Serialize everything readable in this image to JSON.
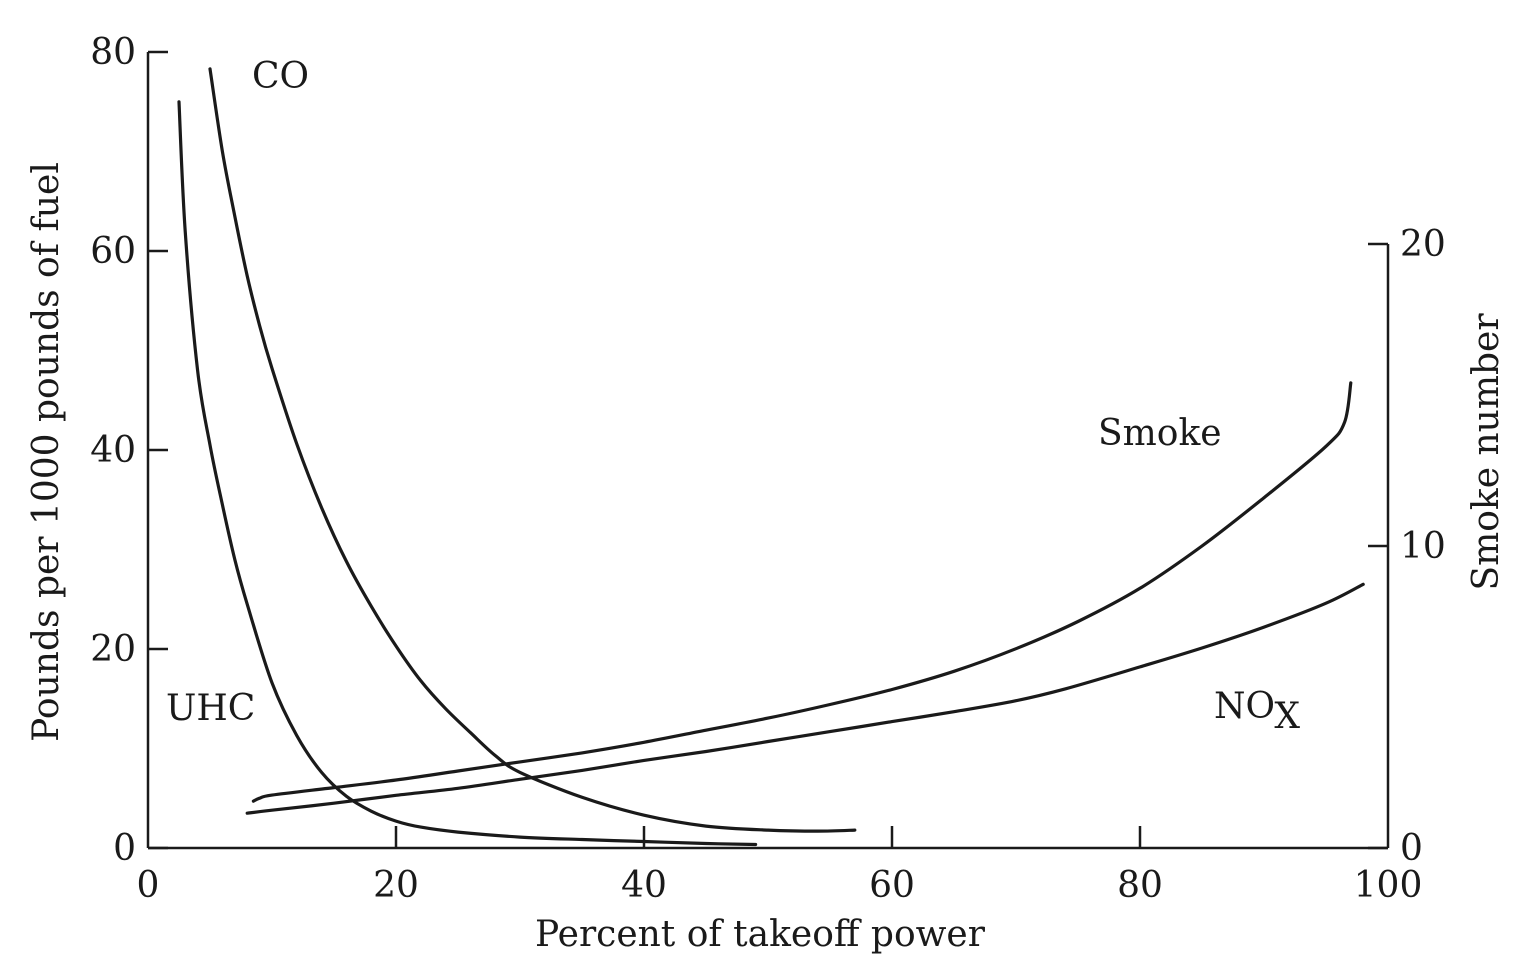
{
  "chart_data": {
    "type": "line",
    "title": "",
    "xlabel": "Percent of takeoff power",
    "ylabel": "Pounds per 1000 pounds of fuel",
    "y2label": "Smoke number",
    "xlim": [
      0,
      100
    ],
    "ylim": [
      0,
      80
    ],
    "y2lim": [
      0,
      20
    ],
    "x_ticks": [
      0,
      20,
      40,
      60,
      80,
      100
    ],
    "y_ticks": [
      0,
      20,
      40,
      60,
      80
    ],
    "y2_ticks": [
      0,
      10,
      20
    ],
    "grid": false,
    "series": [
      {
        "name": "CO",
        "axis": "left",
        "x": [
          5,
          6,
          7,
          8,
          9,
          10,
          12,
          14,
          16,
          18,
          20,
          22,
          24,
          26,
          28,
          30,
          35,
          40,
          45,
          50,
          54,
          57
        ],
        "y": [
          78.3,
          70.0,
          63.5,
          57.5,
          52.5,
          48.2,
          40.6,
          34.2,
          28.8,
          24.3,
          20.3,
          16.8,
          14.0,
          11.6,
          9.3,
          7.6,
          5.1,
          3.3,
          2.2,
          1.8,
          1.7,
          1.8
        ]
      },
      {
        "name": "UHC",
        "axis": "left",
        "x": [
          2.5,
          3,
          4,
          5,
          6,
          7,
          8,
          10,
          12,
          14,
          16,
          18,
          20,
          22,
          25,
          30,
          35,
          40,
          45,
          49
        ],
        "y": [
          75,
          62.0,
          48.0,
          40.5,
          34.5,
          29.0,
          24.5,
          16.6,
          11.3,
          7.6,
          5.2,
          3.7,
          2.7,
          2.1,
          1.6,
          1.1,
          0.85,
          0.65,
          0.45,
          0.35
        ]
      },
      {
        "name": "Smoke",
        "axis": "right",
        "x": [
          8.5,
          9,
          10,
          15,
          20,
          25,
          30,
          35,
          40,
          45,
          50,
          55,
          60,
          65,
          70,
          75,
          80,
          85,
          90,
          95,
          96.5,
          97
        ],
        "y": [
          1.55,
          1.65,
          1.75,
          2.0,
          2.25,
          2.55,
          2.85,
          3.15,
          3.5,
          3.9,
          4.3,
          4.75,
          5.25,
          5.85,
          6.6,
          7.5,
          8.6,
          10.0,
          11.6,
          13.3,
          14.1,
          15.4
        ]
      },
      {
        "name": "NOX",
        "axis": "left",
        "x": [
          8,
          10,
          15,
          20,
          25,
          30,
          35,
          40,
          45,
          50,
          55,
          60,
          65,
          70,
          74,
          80,
          85,
          90,
          95,
          98
        ],
        "y": [
          3.5,
          3.8,
          4.5,
          5.3,
          6.0,
          6.9,
          7.8,
          8.8,
          9.7,
          10.7,
          11.7,
          12.7,
          13.7,
          14.8,
          16.0,
          18.2,
          20.1,
          22.2,
          24.6,
          26.5
        ]
      }
    ],
    "labels": {
      "co": "CO",
      "uhc": "UHC",
      "smoke": "Smoke",
      "nox_main": "NO",
      "nox_sub": "X"
    }
  }
}
